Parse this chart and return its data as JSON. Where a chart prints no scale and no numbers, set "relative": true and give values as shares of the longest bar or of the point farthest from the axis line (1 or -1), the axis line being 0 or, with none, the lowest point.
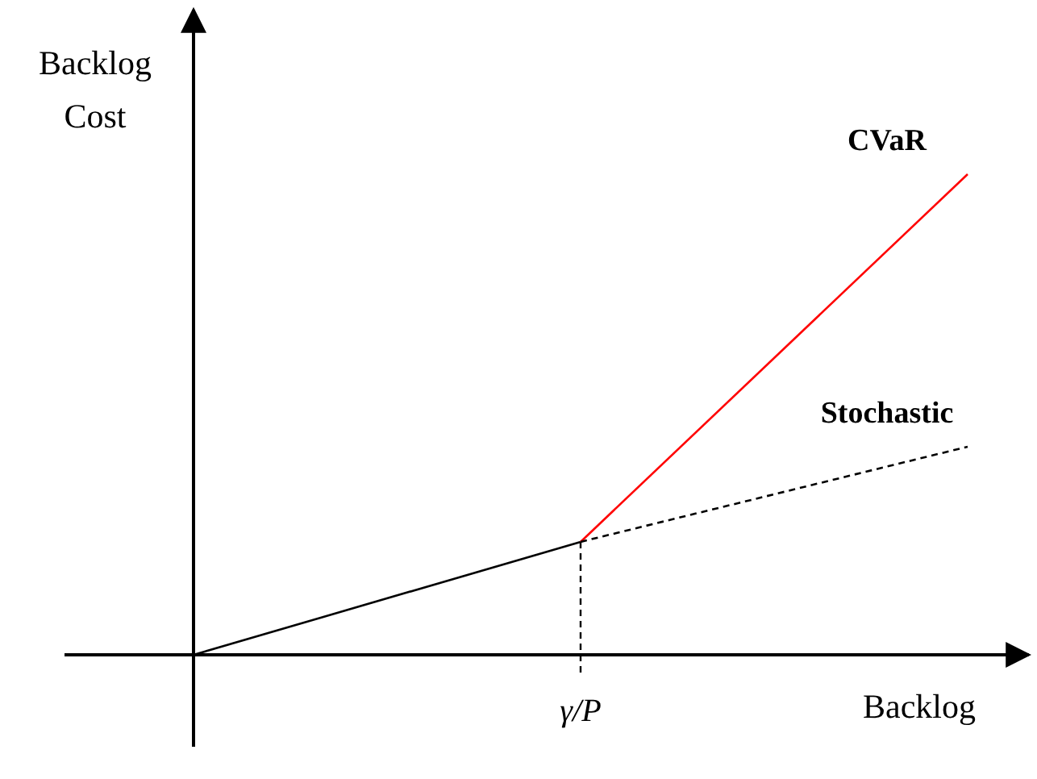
{
  "chart_data": {
    "type": "line",
    "relative": true,
    "xlabel": "Backlog",
    "ylabel": "Backlog Cost",
    "marker": "none",
    "categories": [
      null,
      null,
      null
    ],
    "annotations": [
      "γ/P"
    ],
    "series": [
      {
        "color": "#000000",
        "values": [
          0,
          0.235,
          null
        ],
        "line_style": "solid"
      },
      {
        "name": "CVaR",
        "color": "#ff0000",
        "values": [
          null,
          0.235,
          1
        ],
        "line_style": "solid"
      },
      {
        "name": "Stochastic",
        "color": "#000000",
        "values": [
          null,
          0.235,
          0.433
        ],
        "line_style": "dashed"
      }
    ]
  }
}
